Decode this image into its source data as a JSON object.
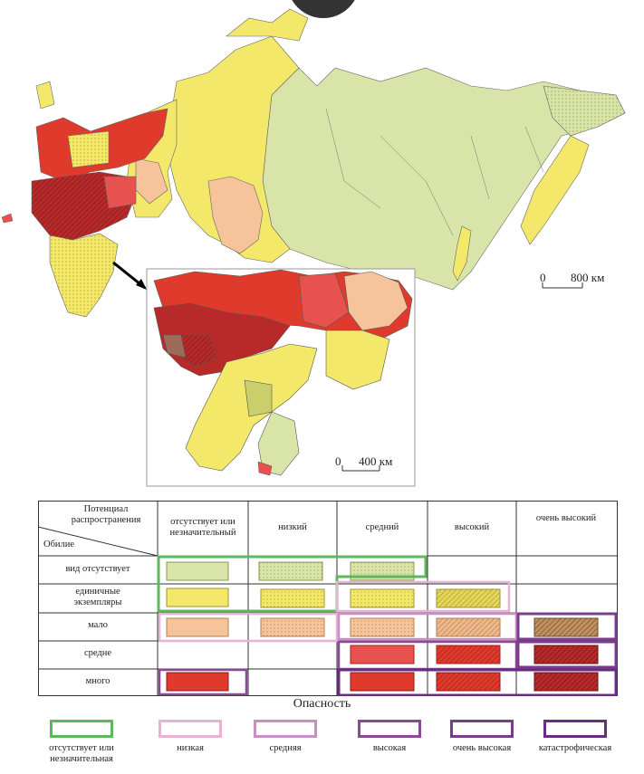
{
  "map": {
    "scale_main": {
      "zero": "0",
      "value": "800 км"
    },
    "scale_inset": {
      "zero": "0",
      "value": "400 км"
    }
  },
  "table": {
    "corner_top": "Потенциал распространения",
    "corner_bottom": "Обилие",
    "columns": [
      "отсутствует или незначительный",
      "низкий",
      "средний",
      "высокий",
      "очень высокий"
    ],
    "rows": [
      "вид отсутствует",
      "единичные экземпляры",
      "мало",
      "средне",
      "много"
    ]
  },
  "legend": {
    "title": "Опасность",
    "items": [
      {
        "label": "отсутствует или незначительная",
        "color": "#5cb85c"
      },
      {
        "label": "низкая",
        "color": "#e6b3d4"
      },
      {
        "label": "средняя",
        "color": "#c98fc4"
      },
      {
        "label": "высокая",
        "color": "#8b4a96"
      },
      {
        "label": "очень высокая",
        "color": "#7a3d8c"
      },
      {
        "label": "катастрофическая",
        "color": "#6a2c82"
      }
    ]
  },
  "colors": {
    "absent_low": "#d8e4a8",
    "single_yellow": "#f3e86a",
    "few_peach": "#f6c39a",
    "mid_red": "#e8524e",
    "high_red": "#e03a2c",
    "very_high_red": "#b82a2a",
    "brown": "#9c6b5a"
  }
}
